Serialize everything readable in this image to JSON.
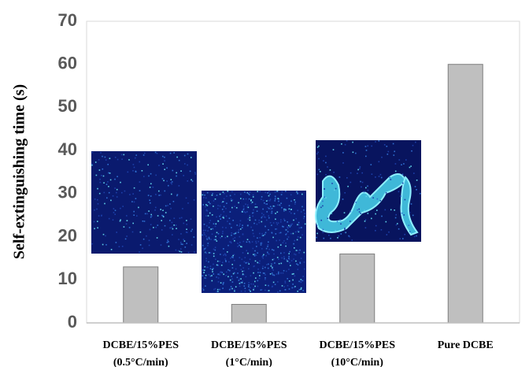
{
  "chart_data": {
    "type": "bar",
    "y_label": "Self-extinguishing time (s)",
    "categories": [
      [
        "DCBE/15%PES",
        "(0.5°C/min)"
      ],
      [
        "DCBE/15%PES",
        "(1°C/min)"
      ],
      [
        "DCBE/15%PES",
        "(10°C/min)"
      ],
      [
        "Pure DCBE"
      ]
    ],
    "values": [
      13,
      4.3,
      16,
      60
    ],
    "color": "#bfbfbf",
    "ylim": [
      0,
      70
    ],
    "yticks": [
      0,
      10,
      20,
      30,
      40,
      50,
      60,
      70
    ],
    "grid": false
  }
}
